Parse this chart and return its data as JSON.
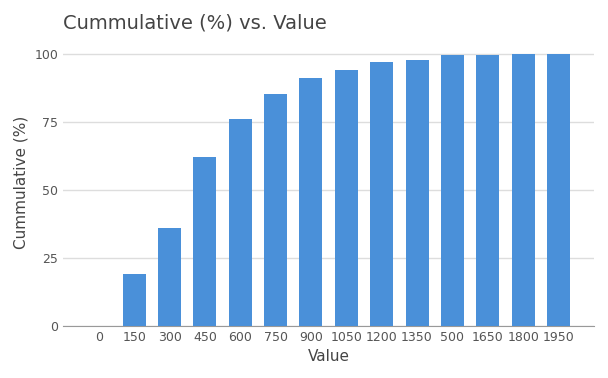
{
  "title": "Cummulative (%) vs. Value",
  "xlabel": "Value",
  "ylabel": "Cummulative (%)",
  "categories": [
    "0",
    "150",
    "300",
    "450",
    "600",
    "750",
    "900",
    "1050",
    "1200",
    "1350",
    "500",
    "1650",
    "1800",
    "1950"
  ],
  "values": [
    0,
    19,
    36,
    62,
    76,
    85,
    91,
    94,
    97,
    97.5,
    99.5,
    99.5,
    100,
    100
  ],
  "bar_color": "#4A90D9",
  "background_color": "#ffffff",
  "plot_bg_color": "#ffffff",
  "grid_color": "#dddddd",
  "yticks": [
    0,
    25,
    50,
    75,
    100
  ],
  "ylim": [
    0,
    105
  ],
  "title_fontsize": 14,
  "label_fontsize": 11,
  "tick_fontsize": 9
}
